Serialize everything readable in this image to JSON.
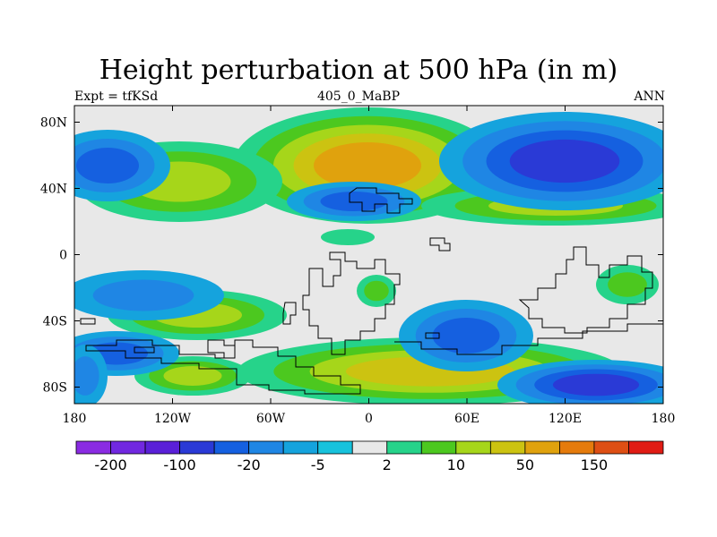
{
  "title": "Height perturbation at 500 hPa (in m)",
  "subtitle_left": "Expt = tfKSd",
  "subtitle_center": "405_0_MaBP",
  "subtitle_right": "ANN",
  "axes": {
    "lon_ticks": [
      "180",
      "120W",
      "60W",
      "0",
      "60E",
      "120E",
      "180"
    ],
    "lat_ticks": [
      "80N",
      "40N",
      "0",
      "40S",
      "80S"
    ]
  },
  "colorbar": {
    "colors": [
      "#8a2be2",
      "#7128e0",
      "#5a20d8",
      "#2a3ad6",
      "#1560e0",
      "#1f86e4",
      "#15a3dd",
      "#17c2dc",
      "#e8e8e8",
      "#26d38a",
      "#4cc81f",
      "#a6d61a",
      "#ccc311",
      "#e0a20d",
      "#e57b0c",
      "#de4f14",
      "#e01c14"
    ],
    "labels": [
      "-200",
      "-100",
      "-20",
      "-5",
      "2",
      "10",
      "50",
      "150"
    ]
  },
  "palette": {
    "bg": "#e8e8e8",
    "neg": [
      "#15a3dd",
      "#1f86e4",
      "#1560e0",
      "#2a3ad6"
    ],
    "pos": [
      "#26d38a",
      "#4cc81f",
      "#a6d61a",
      "#ccc311",
      "#e0a20d"
    ]
  }
}
